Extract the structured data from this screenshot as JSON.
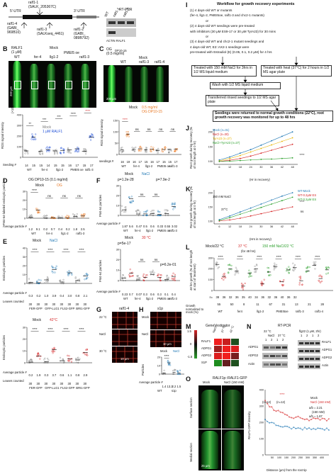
{
  "panel_letters": [
    "A",
    "B",
    "C",
    "D",
    "E",
    "F",
    "G",
    "H",
    "I",
    "J",
    "K",
    "L",
    "M",
    "N",
    "O"
  ],
  "panelA": {
    "gene_top": "ralf1-1",
    "salk_top": "(SALK_205367C)",
    "utr5": "5'-UTR",
    "utr3": "3'-UTR",
    "ralf1_4": "ralf1-4",
    "gabi": "(GABI_",
    "gabi_id": "969B10)",
    "ralf1_3": "ralf1-3",
    "salkseq": "(SALKseq_4461)",
    "ralf1_2": "ralf1-2",
    "gabi2": "(GABI_",
    "gabi2_id": "089B792)",
    "rtpcr": "RT-PCR",
    "actin": "ACTIN RALF1",
    "lanes": [
      "WT",
      "ralf1-1",
      "ralf1-2"
    ]
  },
  "panelB": {
    "title_left": "RALF1",
    "title_left2": "(1 μM)",
    "title_mock": "Mock",
    "genotypes": [
      "WT",
      "fer-4",
      "llg1-2",
      "PMEI5 oe",
      "ralf1-3"
    ],
    "scale": "200 μm",
    "legend": [
      "Mock",
      "1 μM RALF1"
    ],
    "ylabel": "ROS signal intensity",
    "yunit": "(×10³)",
    "yticks": [
      "400",
      "300",
      "200",
      "100",
      "0"
    ],
    "seeding_label": "Seeding #",
    "seeding": [
      "14",
      "15",
      "15",
      "14",
      "15",
      "15",
      "16",
      "17",
      "15",
      "17"
    ],
    "sig": [
      "**",
      "***",
      "***",
      "****",
      "****"
    ]
  },
  "panelC": {
    "title1": "OG",
    "title_sub": "DP10-15",
    "title2": "(0.5 mg/ml)",
    "mock": "Mock",
    "genotypes": [
      "WT",
      "ralf1-3",
      "ralf1-4"
    ],
    "scale": "200 μm",
    "legend": [
      "Mock",
      "0.5 mg/ml",
      "OG DP10-15"
    ],
    "ylabel": "ROS signal intensity",
    "yunit": "(×10³)",
    "yticks": [
      "150",
      "100",
      "50",
      "0"
    ],
    "seeding_label": "seedings #",
    "seeding": [
      "16",
      "19",
      "16",
      "17",
      "15",
      "16",
      "17",
      "15",
      "15",
      "17"
    ],
    "xgroups": [
      "WT",
      "fer-4",
      "llg1-2",
      "PMEI5 oe",
      "ralf1-3",
      "ralf1-4"
    ],
    "ns": [
      "ns",
      "ns",
      "ns",
      "ns",
      "ns"
    ],
    "sig": [
      "****"
    ]
  },
  "panelD": {
    "title": "OG DP10-15 (0.1 mg/ml)",
    "legend": [
      "Mock",
      "OG"
    ],
    "ylabel": "FM4-64-labeled endocytic particles",
    "yunit": "(/100 μm²)",
    "yticks": [
      "30",
      "20",
      "10",
      "0"
    ],
    "avg_label": "Average particle #",
    "avg": [
      "1.2",
      "9.1",
      "0.2",
      "0.7",
      "0.4",
      "0.2",
      "1.8",
      "2.5"
    ],
    "genotypes": [
      "WT",
      "fer-4",
      "llg1-2",
      "ralf1-3"
    ],
    "sig": [
      "****",
      "ns",
      "ns",
      "ns"
    ]
  },
  "panelE": {
    "legend1": [
      "Mock",
      "NaCl"
    ],
    "legend2": [
      "Mock",
      "42°C"
    ],
    "ylabel": "Endocytic particles",
    "yunit": "(/100 μm²)",
    "yticks1": [
      "40",
      "30",
      "20",
      "10",
      "0"
    ],
    "yticks2": [
      "30",
      "20",
      "10",
      "0"
    ],
    "avg_label": "Average particle #",
    "avg1": [
      "0.3",
      "0.2",
      "1.0",
      "3.9",
      "0.4",
      "3.0",
      "0.8",
      "2.1"
    ],
    "avg2": [
      "0.2",
      "1.9",
      "0.3",
      "3.7",
      "0.6",
      "1.1",
      "0.8",
      "2.9"
    ],
    "counted_label": "Leaves counted",
    "counted1": [
      "30",
      "30",
      "30",
      "30",
      "30",
      "30",
      "30",
      "30"
    ],
    "counted2": [
      "30",
      "30",
      "30",
      "30",
      "30",
      "30",
      "30",
      "30"
    ],
    "lines": [
      "FER-GFP",
      "GFP-LLG1",
      "FLS2-GFP",
      "BRI1-GFP"
    ],
    "sig": [
      "****",
      "****",
      "****",
      "****"
    ]
  },
  "panelF": {
    "legend1": [
      "Mock",
      "NaCl"
    ],
    "legend2": [
      "Mock",
      "30 °C"
    ],
    "ylabel": "FM4-64 particles",
    "yunit": "(/100 μm²)",
    "yticks": [
      "30",
      "20",
      "10",
      "0"
    ],
    "p1": "p=1.2e-28",
    "p2": "p=7.9e-2",
    "p3": "p=5e-17",
    "p4": "p=6.2e-01",
    "avg_label": "Average particle #",
    "avg1": [
      "1.87",
      "5.6",
      "0.47",
      "0.5",
      "0.6",
      "0.33",
      "0.55",
      "3.02"
    ],
    "avg2": [
      "0.23",
      "0.7",
      "0.07",
      "0.3",
      "0.6",
      "0.3",
      "0.1",
      "0.4"
    ],
    "genotypes": [
      "WT",
      "fer-4",
      "llg1-2",
      "PMEI5 oe",
      "ralf1-3"
    ],
    "ns": [
      "ns",
      "ns",
      "ns",
      "ns",
      "ns",
      "ns"
    ]
  },
  "panelG": {
    "title": "ralf1-4",
    "rows": [
      "22 °C",
      "NaCl",
      "30 °C"
    ],
    "scale": "10 μm"
  },
  "panelH": {
    "title": "s1p",
    "cols": [
      "WT"
    ],
    "rows": [
      "Mock",
      "NaCl"
    ],
    "scale": "10 μm",
    "ylabel": "Particles",
    "yunit": "(/100 μm²)",
    "legend": [
      "Mock",
      "NaCl"
    ],
    "avg_label": "Average particle #",
    "avg": [
      "1.4",
      "13.2",
      "2.2",
      "1.5"
    ],
    "genotypes": [
      "WT",
      "s1p"
    ],
    "sig": [
      "****"
    ]
  },
  "panelI": {
    "title": "Workflow for growth recovery experiments",
    "steps": [
      "(1) 4 days-old WT or mutants",
      "(fer-4, llg1-2, PMEI5oe, ralf1-3 and chc2-1 mutants)",
      "or",
      "(2) 4 days-old WT seedings were pre-treated",
      "with inhibitors (30 μM ES9-17 or 30 μM TyrA23) for 30 mins",
      "or",
      "(3) 4 days-old WT and chc2-1 mutant seedings and",
      "4 days-old WT, E2::AX2-1 seedings were",
      "pre-treated with Estradiol (E) (0.05, 0.1, 0.2 μM) for 4 hrs"
    ],
    "treat_nacl": "Treated with 150 mM NaCl for 3hrs in 1/2 MS liquid medium",
    "treat_heat": "Treated with heat (37°C) for 2 hours in 1/2 MS agar plate",
    "wash": "Wash with 1/2 MS liquid medium",
    "transfer": "Transferred rinsed seedings to 1/2 MS agar plate",
    "final": "Seedings were returned to normal growth conditions (22°C), root growth recovery was monitored for up to 48 hrs"
  },
  "panelJ": {
    "legend": [
      "Mock (n=31)",
      "NaCl (n=30)",
      "TyrA23 (n=27)",
      "NaCl+TyrA23 (n=27)"
    ],
    "ylabel": "Root growth during recovery (% of root length at 0 hr)",
    "yticks": [
      "200",
      "150",
      "100"
    ],
    "xticks": [
      "6",
      "12",
      "18",
      "24",
      "30",
      "36",
      "42",
      "48"
    ],
    "xlabel": "(Hr in recovery)",
    "sig": "****"
  },
  "panelK": {
    "legend": [
      "WT-Mock",
      "WT-0.2μM ES",
      "WT-0.2μM ES"
    ],
    "conds": [
      "150 mM NaCl",
      "37°C"
    ],
    "ylabel": "Root growth during recovery (% of root length at 0 hr)",
    "yticks": [
      "200",
      "150",
      "100"
    ],
    "xticks": [
      "6",
      "12",
      "18",
      "24",
      "30",
      "36",
      "42",
      "48"
    ],
    "xlabel": "(Hrs in recovery)",
    "sig": [
      "****",
      "ns"
    ]
  },
  "panelL": {
    "legend": [
      "Mock/22 °C",
      "37 °C",
      "150 mM NaCl/22 °C"
    ],
    "subtitle": "(for 48 hrs)",
    "ylabel": "48 hrs growth (% of root length at start of treatment)",
    "yticks": [
      "300",
      "200",
      "100",
      "0"
    ],
    "growth_label": "Growth normalized to mock (%)",
    "n": [
      "n=",
      "38",
      "36",
      "32",
      "36",
      "35",
      "40",
      "34",
      "36",
      "32",
      "36",
      "40",
      "36",
      "32"
    ],
    "pct": [
      "55",
      "50",
      "8",
      "11",
      "67",
      "31",
      "13",
      "21",
      "28"
    ],
    "genotypes": [
      "WT",
      "fer4",
      "llg1-2",
      "PMEI5oe",
      "ralf1-3",
      "ralf1-4"
    ],
    "sig": [
      "****",
      "****",
      "****",
      "****",
      "****",
      "****"
    ]
  },
  "panelM": {
    "title": "GeneVestigator",
    "genes": [
      "RALF1",
      "ADPG1",
      "ADPG2",
      "S1P"
    ],
    "cols": [
      "NaCl",
      "37 °C",
      "42 °C"
    ],
    "legend": [
      "1.5",
      "0",
      "-1.5"
    ]
  },
  "panelN": {
    "title": "RT-PCR",
    "temp": "22 °C",
    "cond1": "NaCl",
    "cond2": "37 °C",
    "flg22": "flg22 (1 μM, 2hr)",
    "times": [
      "1",
      "2",
      "1",
      "2"
    ],
    "times2": [
      "1",
      "2",
      "1",
      "2"
    ],
    "rows": [
      "ADPG1",
      "ADPG2",
      "Actin"
    ],
    "rows2": [
      "RALF1",
      "ADPG1",
      "ADPG2",
      "Actin"
    ]
  },
  "panelO": {
    "title": "RALF1p::RALF1-GFP",
    "cols": [
      "Mock",
      "NaCl (150 mM)"
    ],
    "rows": [
      "Surface section",
      "Medial section"
    ],
    "scale": "25 μm",
    "legend": [
      "Mock",
      "NaCl (150 mM)"
    ],
    "ylabel": "RALF1-GFP intensity",
    "yticks": [
      "400",
      "300",
      "200",
      "100",
      "0"
    ],
    "xlabel": "Distance (μm) from the root tip",
    "xticks": [
      "50",
      "100",
      "150",
      "200",
      "250",
      "300",
      "350",
      "400"
    ],
    "n": "(n=12)",
    "n2": "(n=12)",
    "stat1": "a/b = 2.21",
    "stat2": "(150 mM)",
    "stat3": "a/b = 1.67",
    "sig": "****"
  }
}
